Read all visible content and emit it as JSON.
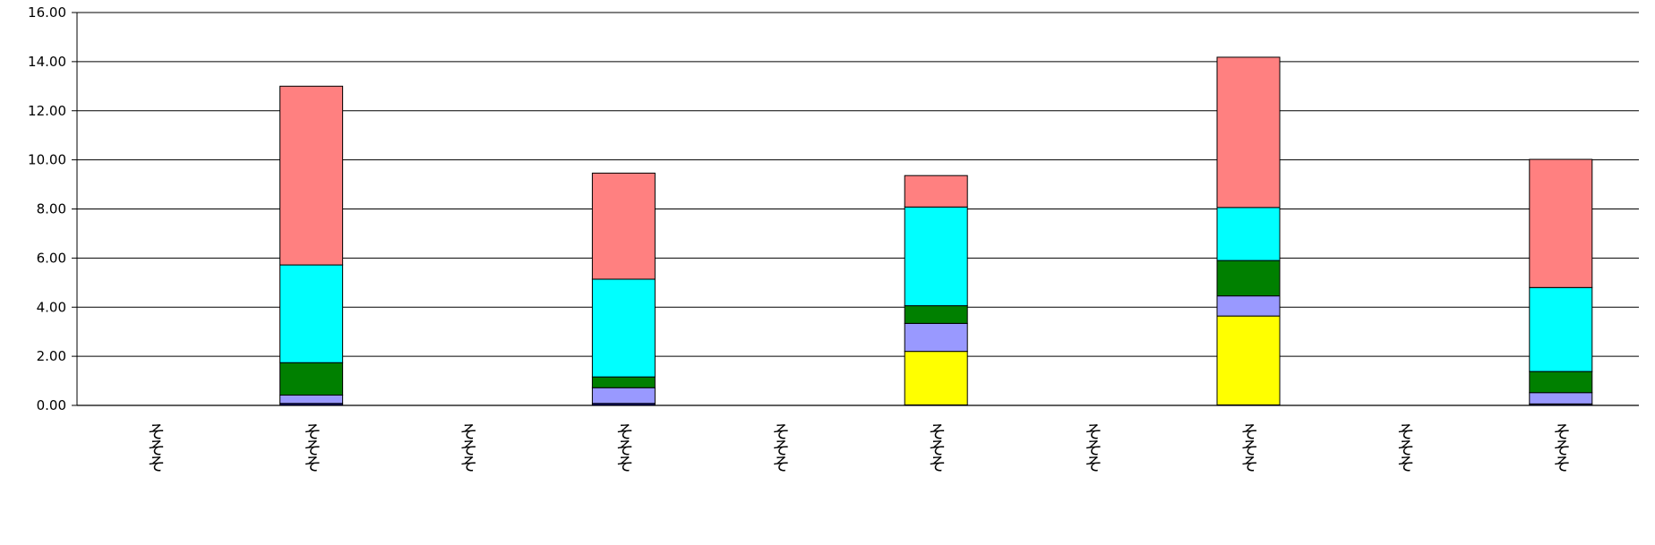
{
  "chart_data": {
    "type": "bar",
    "stacked": true,
    "categories": [
      "そそそ",
      "そそそ",
      "そそそ",
      "そそそ",
      "そそそ",
      "そそそ",
      "そそそ",
      "そそそ",
      "そそそ",
      "そそそ"
    ],
    "series": [
      {
        "color": "#000080",
        "values": [
          0,
          0.08,
          0,
          0.08,
          0,
          0.02,
          0,
          0.02,
          0,
          0.06
        ]
      },
      {
        "color": "#ffff00",
        "values": [
          0,
          0,
          0,
          0,
          0,
          2.18,
          0,
          3.62,
          0,
          0
        ]
      },
      {
        "color": "#9999ff",
        "values": [
          0,
          0.34,
          0,
          0.64,
          0,
          1.14,
          0,
          0.82,
          0,
          0.46
        ]
      },
      {
        "color": "#008000",
        "values": [
          0,
          1.32,
          0,
          0.44,
          0,
          0.72,
          0,
          1.44,
          0,
          0.86
        ]
      },
      {
        "color": "#00ffff",
        "values": [
          0,
          3.98,
          0,
          3.98,
          0,
          4.02,
          0,
          2.16,
          0,
          3.42
        ]
      },
      {
        "color": "#ff8080",
        "values": [
          0,
          7.28,
          0,
          4.32,
          0,
          1.28,
          0,
          6.12,
          0,
          5.22
        ]
      }
    ],
    "ylim": [
      0,
      16
    ],
    "yticks": [
      "0.00",
      "2.00",
      "4.00",
      "6.00",
      "8.00",
      "10.00",
      "12.00",
      "14.00",
      "16.00"
    ],
    "grid": true,
    "legend": "none"
  }
}
